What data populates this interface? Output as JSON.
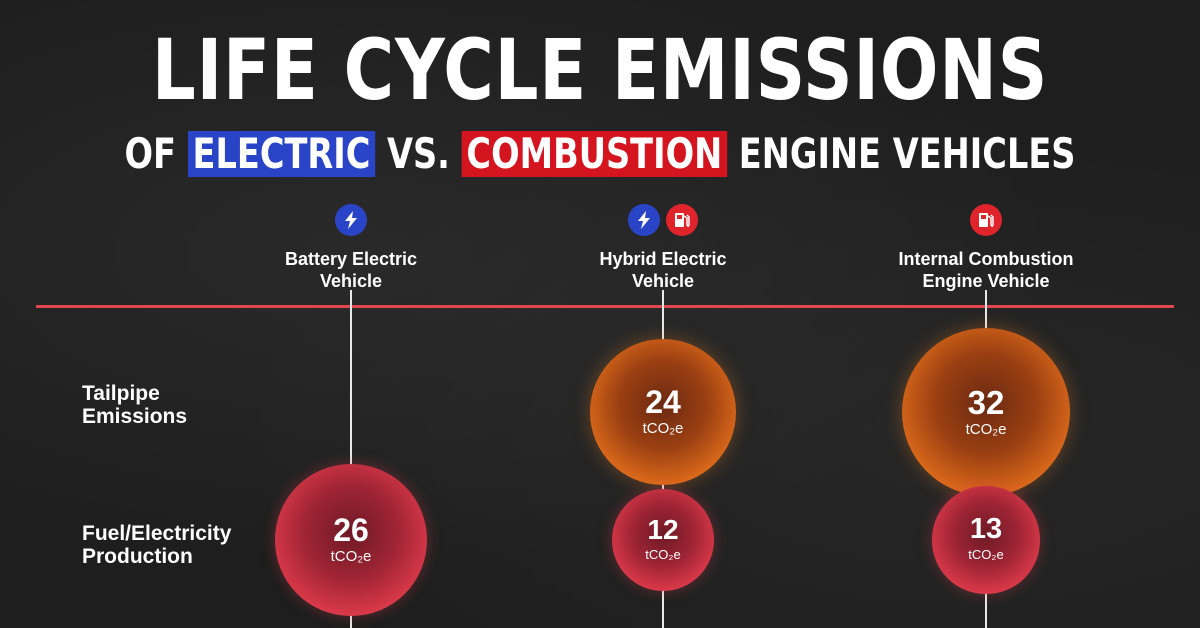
{
  "title": "LIFE CYCLE EMISSIONS",
  "subtitle": {
    "prefix": "OF",
    "electric": "ELECTRIC",
    "vs": "VS.",
    "combustion": "COMBUSTION",
    "suffix": "ENGINE VEHICLES"
  },
  "colors": {
    "electric_blue": "#2a44c8",
    "combustion_red": "#d4141e",
    "tailpipe_orange": "#f08a24",
    "fuel_production_red": "#ee4e5e",
    "divider": "#e2464f"
  },
  "columns": [
    {
      "label_line1": "Battery Electric",
      "label_line2": "Vehicle",
      "icons": [
        "lightning-icon"
      ]
    },
    {
      "label_line1": "Hybrid Electric",
      "label_line2": "Vehicle",
      "icons": [
        "lightning-icon",
        "fuel-pump-icon"
      ]
    },
    {
      "label_line1": "Internal Combustion",
      "label_line2": "Engine Vehicle",
      "icons": [
        "fuel-pump-icon"
      ]
    }
  ],
  "rows": [
    {
      "label_line1": "Tailpipe",
      "label_line2": "Emissions"
    },
    {
      "label_line1": "Fuel/Electricity",
      "label_line2": "Production"
    }
  ],
  "chart_data": {
    "type": "bubble",
    "categories": [
      "Battery Electric Vehicle",
      "Hybrid Electric Vehicle",
      "Internal Combustion Engine Vehicle"
    ],
    "unit": "tCO₂e",
    "series": [
      {
        "name": "Tailpipe Emissions",
        "values": [
          null,
          24,
          32
        ]
      },
      {
        "name": "Fuel/Electricity Production",
        "values": [
          26,
          12,
          13
        ]
      }
    ]
  }
}
